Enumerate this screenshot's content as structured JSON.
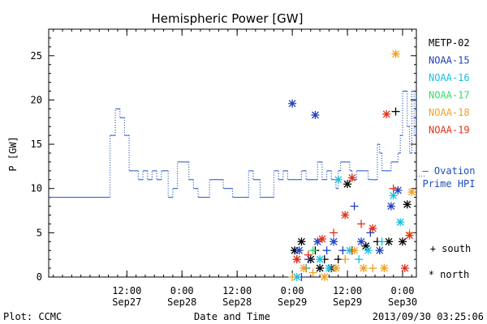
{
  "chart_data": {
    "type": "line",
    "title": "Hemispheric Power [GW]",
    "ylabel": "P [GW]",
    "xlabel": "Date and Time",
    "ylim": [
      0,
      28
    ],
    "yticks": [
      0,
      5,
      10,
      15,
      20,
      25
    ],
    "xlim": [
      "2013-09-26T19:00",
      "2013-09-30T03:00"
    ],
    "xticks": [
      {
        "time": "2013-09-27T12:00",
        "l1": "12:00",
        "l2": "Sep27"
      },
      {
        "time": "2013-09-28T00:00",
        "l1": "0:00",
        "l2": "Sep28"
      },
      {
        "time": "2013-09-28T12:00",
        "l1": "12:00",
        "l2": "Sep28"
      },
      {
        "time": "2013-09-29T00:00",
        "l1": "0:00",
        "l2": "Sep29"
      },
      {
        "time": "2013-09-29T12:00",
        "l1": "12:00",
        "l2": "Sep29"
      },
      {
        "time": "2013-09-30T00:00",
        "l1": "0:00",
        "l2": "Sep30"
      }
    ],
    "ovation": {
      "legend_line1": "— Ovation",
      "legend_line2": "Prime HPI",
      "color": "#1f4fbf",
      "points": [
        [
          "2013-09-26T19:00",
          9
        ],
        [
          "2013-09-27T08:00",
          9
        ],
        [
          "2013-09-27T08:20",
          16
        ],
        [
          "2013-09-27T09:00",
          16
        ],
        [
          "2013-09-27T09:30",
          19
        ],
        [
          "2013-09-27T10:30",
          18
        ],
        [
          "2013-09-27T11:30",
          16
        ],
        [
          "2013-09-27T12:00",
          16
        ],
        [
          "2013-09-27T12:30",
          12
        ],
        [
          "2013-09-27T13:30",
          12
        ],
        [
          "2013-09-27T14:30",
          11
        ],
        [
          "2013-09-27T15:30",
          12
        ],
        [
          "2013-09-27T16:30",
          11
        ],
        [
          "2013-09-27T17:30",
          12
        ],
        [
          "2013-09-27T18:30",
          11
        ],
        [
          "2013-09-27T19:30",
          12
        ],
        [
          "2013-09-27T20:30",
          12
        ],
        [
          "2013-09-27T21:00",
          9
        ],
        [
          "2013-09-27T22:00",
          10
        ],
        [
          "2013-09-27T23:00",
          13
        ],
        [
          "2013-09-28T01:00",
          13
        ],
        [
          "2013-09-28T01:30",
          11
        ],
        [
          "2013-09-28T02:30",
          10
        ],
        [
          "2013-09-28T03:30",
          9
        ],
        [
          "2013-09-28T05:00",
          9
        ],
        [
          "2013-09-28T06:00",
          11
        ],
        [
          "2013-09-28T08:00",
          11
        ],
        [
          "2013-09-28T09:00",
          10
        ],
        [
          "2013-09-28T11:00",
          9
        ],
        [
          "2013-09-28T12:30",
          9
        ],
        [
          "2013-09-28T13:30",
          9
        ],
        [
          "2013-09-28T14:30",
          12
        ],
        [
          "2013-09-28T15:30",
          11
        ],
        [
          "2013-09-28T17:00",
          9
        ],
        [
          "2013-09-28T19:00",
          9
        ],
        [
          "2013-09-28T20:00",
          12
        ],
        [
          "2013-09-28T21:00",
          11
        ],
        [
          "2013-09-28T22:00",
          12
        ],
        [
          "2013-09-28T23:00",
          11
        ],
        [
          "2013-09-29T01:00",
          11
        ],
        [
          "2013-09-29T02:00",
          12
        ],
        [
          "2013-09-29T03:00",
          11
        ],
        [
          "2013-09-29T05:00",
          11
        ],
        [
          "2013-09-29T05:30",
          13
        ],
        [
          "2013-09-29T06:30",
          11
        ],
        [
          "2013-09-29T07:30",
          12
        ],
        [
          "2013-09-29T08:30",
          11
        ],
        [
          "2013-09-29T09:30",
          10
        ],
        [
          "2013-09-29T10:00",
          12
        ],
        [
          "2013-09-29T10:30",
          13
        ],
        [
          "2013-09-29T12:00",
          13
        ],
        [
          "2013-09-29T12:30",
          12
        ],
        [
          "2013-09-29T13:00",
          11
        ],
        [
          "2013-09-29T14:00",
          12
        ],
        [
          "2013-09-29T16:00",
          12
        ],
        [
          "2013-09-29T16:30",
          11
        ],
        [
          "2013-09-29T18:00",
          11
        ],
        [
          "2013-09-29T18:30",
          15
        ],
        [
          "2013-09-29T19:00",
          14
        ],
        [
          "2013-09-29T19:30",
          12
        ],
        [
          "2013-09-29T21:00",
          12
        ],
        [
          "2013-09-29T21:30",
          13
        ],
        [
          "2013-09-29T22:30",
          13
        ],
        [
          "2013-09-29T23:00",
          14
        ],
        [
          "2013-09-29T23:30",
          16
        ],
        [
          "2013-09-30T00:00",
          21
        ],
        [
          "2013-09-30T01:00",
          17
        ],
        [
          "2013-09-30T01:30",
          14
        ],
        [
          "2013-09-30T02:00",
          21
        ],
        [
          "2013-09-30T02:30",
          16
        ],
        [
          "2013-09-30T03:00",
          21
        ]
      ]
    },
    "legend_entries": [
      {
        "label": "METP-02",
        "color": "#000000"
      },
      {
        "label": "NOAA-15",
        "color": "#1f3fbf"
      },
      {
        "label": "NOAA-16",
        "color": "#18bfe0"
      },
      {
        "label": "NOAA-17",
        "color": "#2ee06a"
      },
      {
        "label": "NOAA-18",
        "color": "#f0a020"
      },
      {
        "label": "NOAA-19",
        "color": "#e0301a"
      }
    ],
    "marker_key": {
      "south": "+ south",
      "north": "* north"
    },
    "series": [
      {
        "name": "METP-02",
        "color": "#000000",
        "points": [
          [
            "2013-09-29T00:30",
            3,
            "north"
          ],
          [
            "2013-09-29T01:00",
            2,
            "south"
          ],
          [
            "2013-09-29T02:00",
            4,
            "north"
          ],
          [
            "2013-09-29T03:00",
            1,
            "south"
          ],
          [
            "2013-09-29T04:00",
            2,
            "north"
          ],
          [
            "2013-09-29T05:00",
            3,
            "south"
          ],
          [
            "2013-09-29T06:00",
            1,
            "north"
          ],
          [
            "2013-09-29T07:00",
            2,
            "south"
          ],
          [
            "2013-09-29T08:30",
            1,
            "north"
          ],
          [
            "2013-09-29T10:00",
            2,
            "south"
          ],
          [
            "2013-09-29T12:00",
            10.5,
            "north"
          ],
          [
            "2013-09-29T13:00",
            3,
            "south"
          ],
          [
            "2013-09-29T16:00",
            3.5,
            "north"
          ],
          [
            "2013-09-29T18:30",
            4,
            "south"
          ],
          [
            "2013-09-29T21:00",
            4,
            "north"
          ],
          [
            "2013-09-29T22:30",
            18.7,
            "south"
          ],
          [
            "2013-09-30T01:00",
            8.2,
            "north"
          ],
          [
            "2013-09-30T00:00",
            4,
            "north"
          ]
        ]
      },
      {
        "name": "NOAA-15",
        "color": "#1f3fbf",
        "points": [
          [
            "2013-09-29T00:00",
            19.6,
            "north"
          ],
          [
            "2013-09-29T05:00",
            18.3,
            "north"
          ],
          [
            "2013-09-29T01:30",
            3,
            "north"
          ],
          [
            "2013-09-29T02:00",
            0,
            "south"
          ],
          [
            "2013-09-29T03:30",
            2,
            "south"
          ],
          [
            "2013-09-29T05:30",
            4,
            "north"
          ],
          [
            "2013-09-29T07:30",
            3,
            "south"
          ],
          [
            "2013-09-29T09:00",
            4,
            "north"
          ],
          [
            "2013-09-29T11:00",
            3,
            "south"
          ],
          [
            "2013-09-29T13:30",
            8,
            "south"
          ],
          [
            "2013-09-29T15:00",
            4,
            "north"
          ],
          [
            "2013-09-29T17:00",
            5,
            "south"
          ],
          [
            "2013-09-29T19:00",
            3,
            "north"
          ],
          [
            "2013-09-29T21:30",
            8,
            "north"
          ],
          [
            "2013-09-29T23:00",
            9.8,
            "north"
          ]
        ]
      },
      {
        "name": "NOAA-16",
        "color": "#18bfe0",
        "points": [
          [
            "2013-09-29T01:00",
            0,
            "north"
          ],
          [
            "2013-09-29T03:00",
            1,
            "south"
          ],
          [
            "2013-09-29T06:00",
            2,
            "north"
          ],
          [
            "2013-09-29T08:00",
            1,
            "north"
          ],
          [
            "2013-09-29T10:00",
            11,
            "north"
          ],
          [
            "2013-09-29T12:30",
            3,
            "north"
          ],
          [
            "2013-09-29T14:30",
            2,
            "south"
          ],
          [
            "2013-09-29T16:30",
            3,
            "north"
          ],
          [
            "2013-09-29T19:30",
            4,
            "south"
          ],
          [
            "2013-09-29T22:00",
            9.2,
            "north"
          ],
          [
            "2013-09-29T23:30",
            6.2,
            "north"
          ]
        ]
      },
      {
        "name": "NOAA-17",
        "color": "#2ee06a",
        "points": [
          [
            "2013-09-29T04:30",
            3,
            "south"
          ]
        ]
      },
      {
        "name": "NOAA-18",
        "color": "#f0a020",
        "points": [
          [
            "2013-09-29T00:00",
            0,
            "south"
          ],
          [
            "2013-09-29T02:30",
            1,
            "north"
          ],
          [
            "2013-09-29T04:30",
            0.5,
            "south"
          ],
          [
            "2013-09-29T07:00",
            0,
            "north"
          ],
          [
            "2013-09-29T09:30",
            1,
            "north"
          ],
          [
            "2013-09-29T11:30",
            2,
            "south"
          ],
          [
            "2013-09-29T13:30",
            3,
            "north"
          ],
          [
            "2013-09-29T15:30",
            1,
            "north"
          ],
          [
            "2013-09-29T17:30",
            1,
            "south"
          ],
          [
            "2013-09-29T20:00",
            1,
            "north"
          ],
          [
            "2013-09-29T22:30",
            25.2,
            "north"
          ],
          [
            "2013-09-30T02:00",
            9.6,
            "north"
          ],
          [
            "2013-09-30T01:30",
            5,
            "south"
          ]
        ]
      },
      {
        "name": "NOAA-19",
        "color": "#e0301a",
        "points": [
          [
            "2013-09-29T01:00",
            2,
            "north"
          ],
          [
            "2013-09-29T03:30",
            2.5,
            "south"
          ],
          [
            "2013-09-29T06:30",
            4.3,
            "north"
          ],
          [
            "2013-09-29T09:00",
            5,
            "south"
          ],
          [
            "2013-09-29T11:30",
            7,
            "north"
          ],
          [
            "2013-09-29T13:00",
            11.2,
            "north"
          ],
          [
            "2013-09-29T15:00",
            6,
            "south"
          ],
          [
            "2013-09-29T17:30",
            5.5,
            "north"
          ],
          [
            "2013-09-29T20:30",
            18.4,
            "north"
          ],
          [
            "2013-09-29T22:00",
            10,
            "south"
          ],
          [
            "2013-09-30T00:30",
            1,
            "north"
          ],
          [
            "2013-09-30T01:30",
            4.7,
            "north"
          ]
        ]
      }
    ]
  },
  "footer": {
    "left": "Plot: CCMC",
    "center": "Date and Time",
    "right": "2013/09/30 03:25:06"
  }
}
